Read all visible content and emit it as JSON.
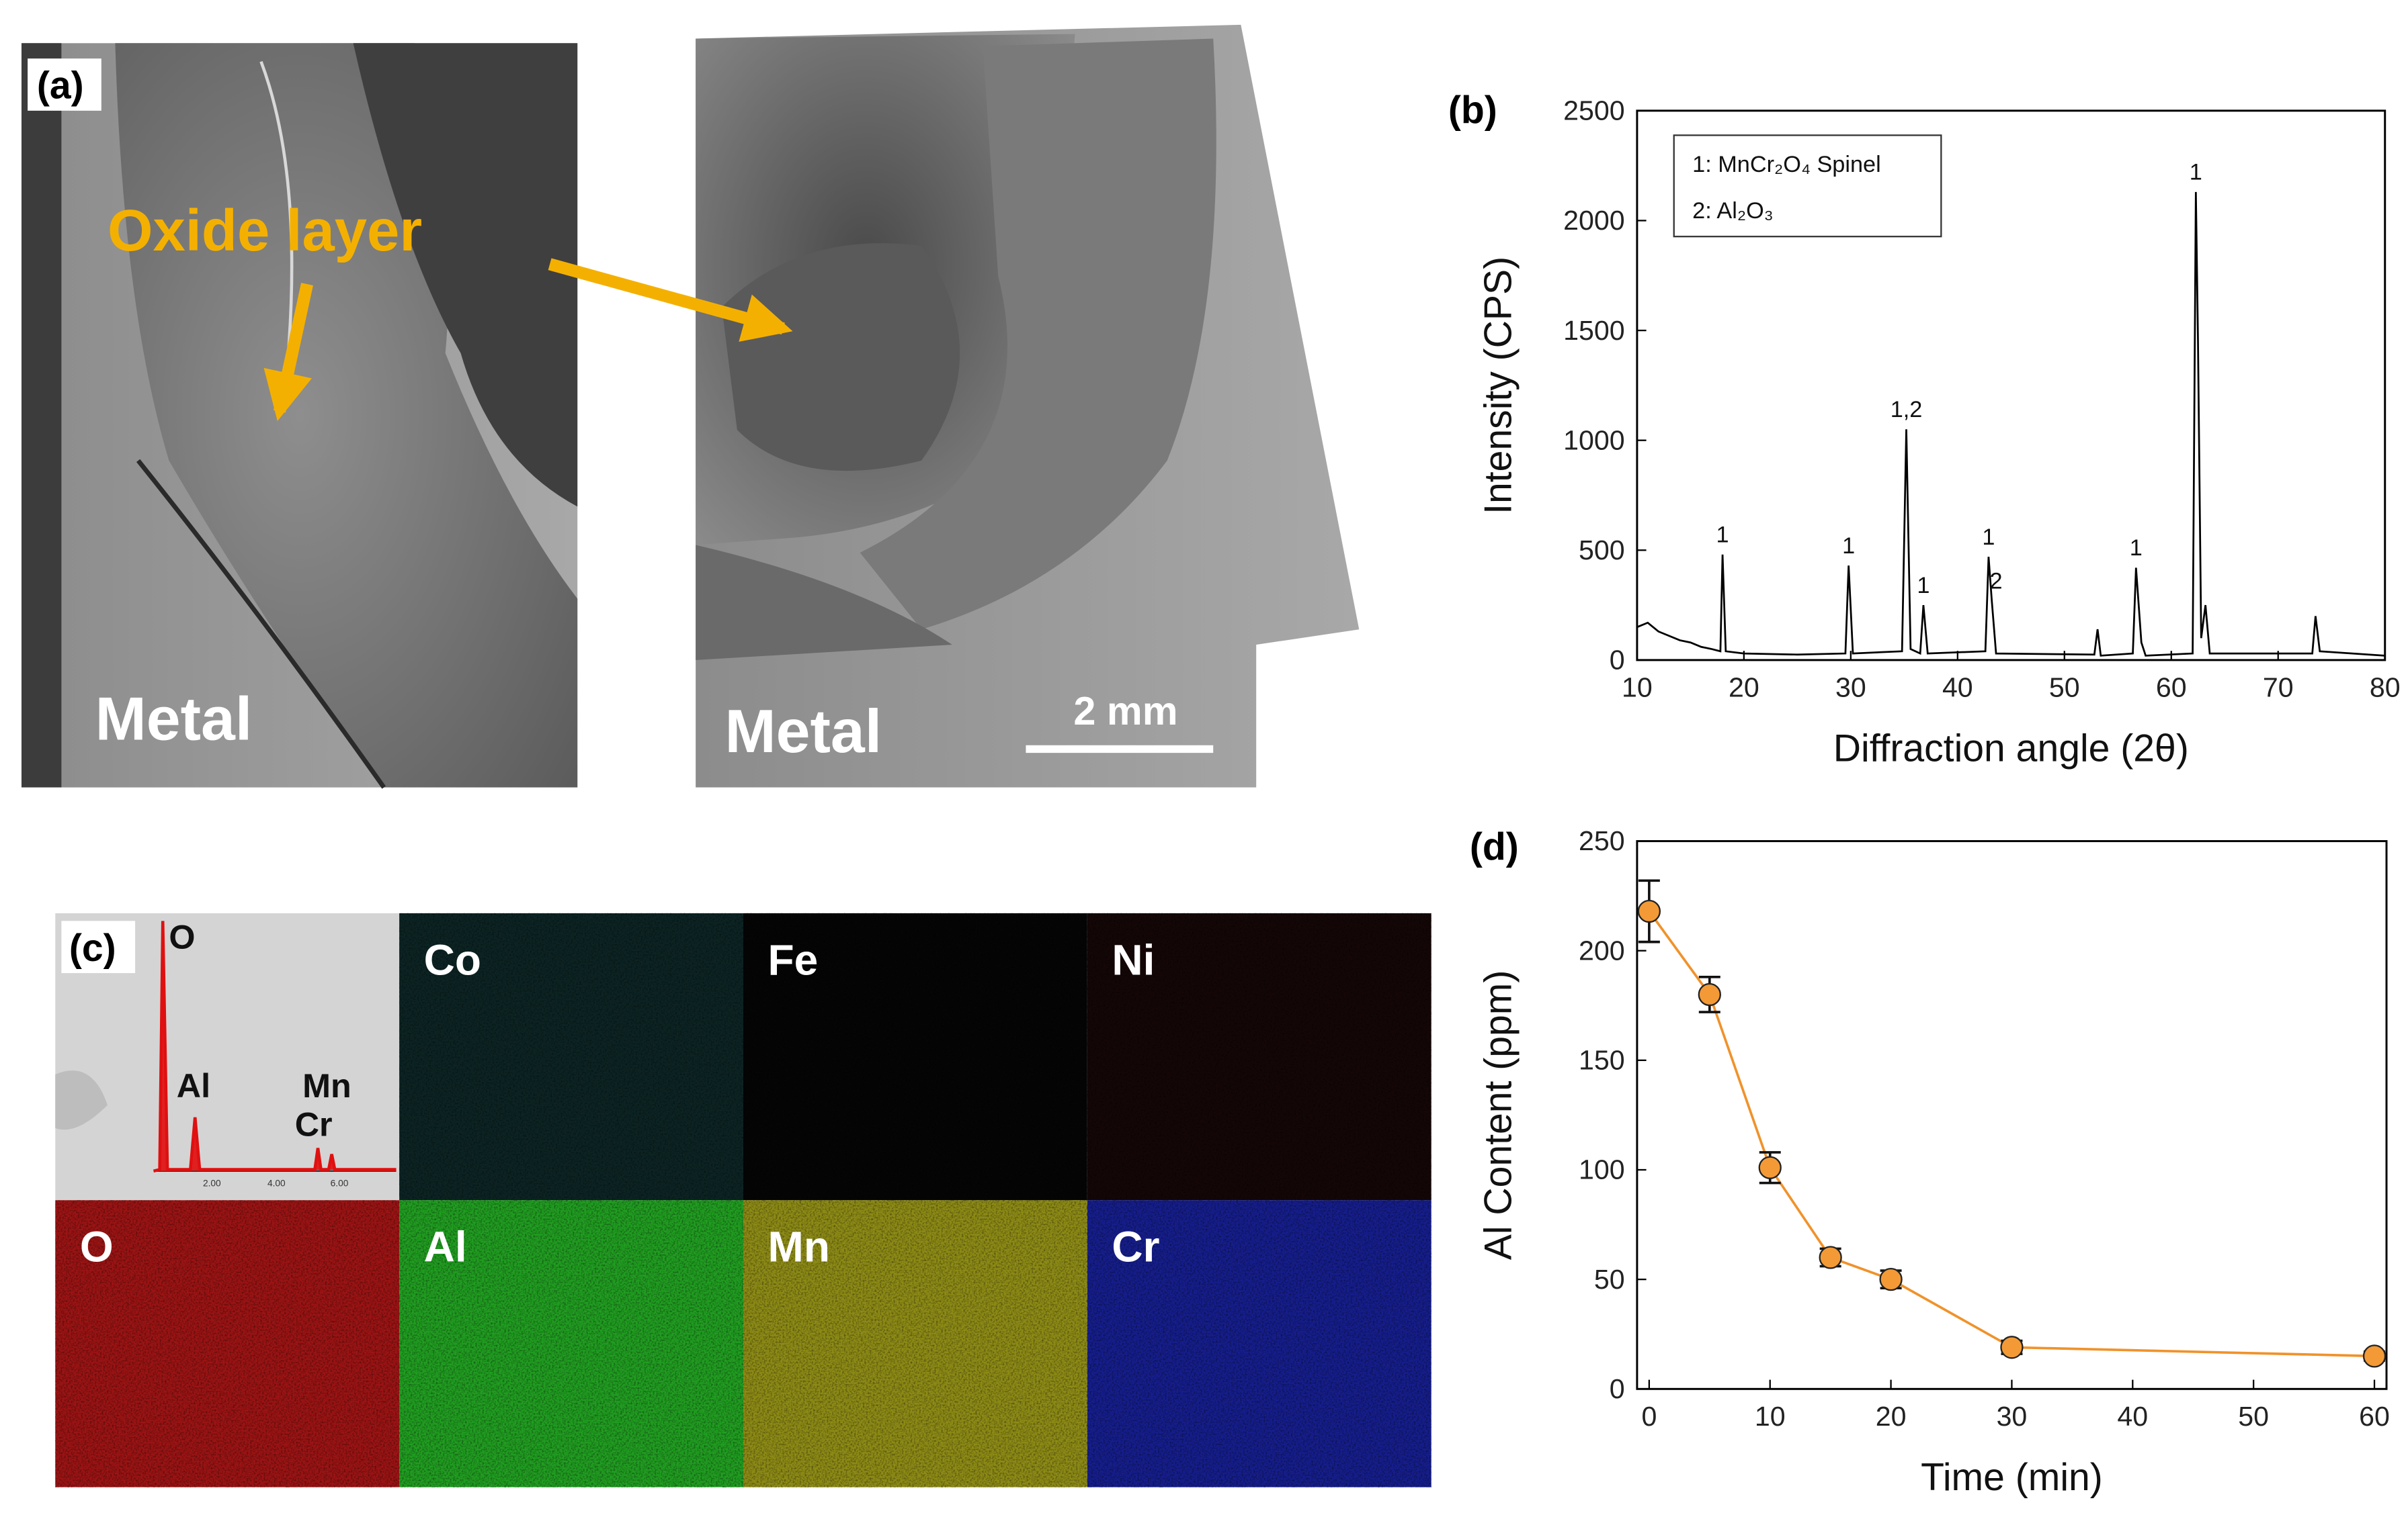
{
  "figure": {
    "panel_labels": [
      "(a)",
      "(b)",
      "(c)",
      "(d)"
    ],
    "sem": {
      "annotation": "Oxide layer",
      "metal_labels": [
        "Metal",
        "Metal"
      ],
      "scale_bar": "2 mm"
    },
    "eds": {
      "spectrum_labels": [
        "O",
        "Al",
        "Mn",
        "Cr"
      ],
      "spectrum_ticks": [
        "2.00",
        "4.00",
        "6.00"
      ],
      "maps": [
        {
          "element": "Co",
          "color": "#0d2424"
        },
        {
          "element": "Fe",
          "color": "#050505"
        },
        {
          "element": "Ni",
          "color": "#150707"
        },
        {
          "element": "O",
          "color": "#9c1414"
        },
        {
          "element": "Al",
          "color": "#219e21"
        },
        {
          "element": "Mn",
          "color": "#8e8c16"
        },
        {
          "element": "Cr",
          "color": "#161e8c"
        }
      ]
    }
  },
  "chart_data": [
    {
      "type": "line",
      "xlabel": "Diffraction angle (2θ)",
      "ylabel": "Intensity (CPS)",
      "color": "#000000",
      "markers": false,
      "grid": false,
      "x": [
        10,
        11,
        12,
        13,
        14,
        15,
        16,
        17,
        17.8,
        18.0,
        18.3,
        20,
        25,
        29.5,
        29.8,
        30.2,
        34.8,
        35.2,
        35.6,
        36.5,
        36.8,
        37.2,
        42.6,
        42.9,
        43.2,
        43.6,
        52.8,
        53.1,
        53.4,
        56.4,
        56.7,
        57.2,
        57.6,
        62.0,
        62.3,
        62.5,
        62.8,
        63.2,
        63.6,
        73.2,
        73.5,
        73.9,
        80
      ],
      "values": [
        150,
        170,
        130,
        110,
        90,
        80,
        60,
        50,
        40,
        480,
        40,
        30,
        25,
        30,
        430,
        30,
        40,
        1050,
        50,
        30,
        250,
        30,
        40,
        470,
        270,
        30,
        25,
        140,
        20,
        30,
        420,
        80,
        20,
        30,
        2130,
        1450,
        100,
        250,
        30,
        30,
        200,
        40,
        20
      ],
      "xlim": [
        10,
        80
      ],
      "xticks": [
        10,
        20,
        30,
        40,
        50,
        60,
        70,
        80
      ],
      "ylim": [
        0,
        2500
      ],
      "yticks": [
        0,
        500,
        1000,
        1500,
        2000,
        2500
      ],
      "legend": [
        "1: MnCr₂O₄ Spinel",
        "2: Al₂O₃"
      ],
      "legend_position": "upper left",
      "annotations": [
        {
          "text": "1",
          "x": 18,
          "y": 480
        },
        {
          "text": "1",
          "x": 29.8,
          "y": 430
        },
        {
          "text": "1,2",
          "x": 35.2,
          "y": 1050
        },
        {
          "text": "1",
          "x": 36.8,
          "y": 250
        },
        {
          "text": "1",
          "x": 42.9,
          "y": 470
        },
        {
          "text": "2",
          "x": 43.6,
          "y": 270
        },
        {
          "text": "1",
          "x": 56.7,
          "y": 420
        },
        {
          "text": "1",
          "x": 62.3,
          "y": 2130
        }
      ]
    },
    {
      "type": "line",
      "xlabel": "Time (min)",
      "ylabel": "Al Content (ppm)",
      "color": "#f0922a",
      "marker_color": "#f39a36",
      "markers": true,
      "grid": false,
      "x": [
        0,
        5,
        10,
        15,
        20,
        30,
        60
      ],
      "values": [
        218,
        180,
        101,
        60,
        50,
        19,
        15
      ],
      "errors": [
        14,
        8,
        7,
        4,
        4,
        3,
        2
      ],
      "xlim": [
        -1,
        61
      ],
      "xticks": [
        0,
        10,
        20,
        30,
        40,
        50,
        60
      ],
      "ylim": [
        0,
        250
      ],
      "yticks": [
        0,
        50,
        100,
        150,
        200,
        250
      ]
    }
  ]
}
